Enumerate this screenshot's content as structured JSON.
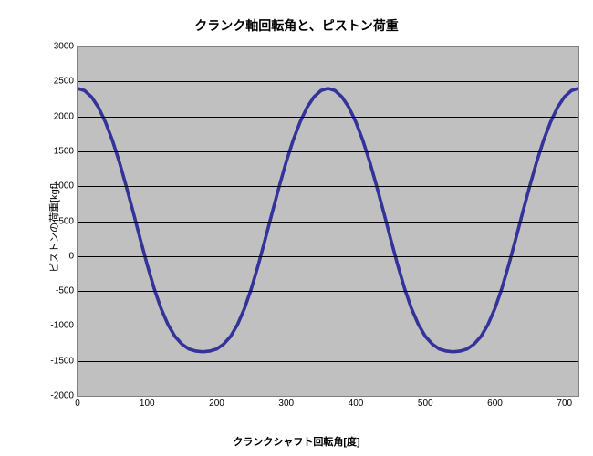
{
  "chart": {
    "type": "line",
    "title": "クランク軸回転角と、ピストン荷重",
    "xlabel": "クランクシャフト回転角[度]",
    "ylabel": "ピストンの荷重[kgf]",
    "title_fontsize": 14,
    "label_fontsize": 11,
    "tick_fontsize": 10,
    "background_color": "#ffffff",
    "plot_background_color": "#c0c0c0",
    "grid_color": "#000000",
    "border_color": "#808080",
    "line_color": "#333399",
    "line_width": 1.2,
    "xlim": [
      0,
      720
    ],
    "ylim": [
      -2000,
      3000
    ],
    "xticks": [
      0,
      100,
      200,
      300,
      400,
      500,
      600,
      700
    ],
    "yticks": [
      -2000,
      -1500,
      -1000,
      -500,
      0,
      500,
      1000,
      1500,
      2000,
      2500,
      3000
    ],
    "grid_y": true,
    "grid_x": false,
    "series": {
      "x": [
        0,
        10,
        20,
        30,
        40,
        50,
        60,
        70,
        80,
        90,
        100,
        110,
        120,
        130,
        140,
        150,
        160,
        170,
        180,
        190,
        200,
        210,
        220,
        230,
        240,
        250,
        260,
        270,
        280,
        290,
        300,
        310,
        320,
        330,
        340,
        350,
        360,
        370,
        380,
        390,
        400,
        410,
        420,
        430,
        440,
        450,
        460,
        470,
        480,
        490,
        500,
        510,
        520,
        530,
        540,
        550,
        560,
        570,
        580,
        590,
        600,
        610,
        620,
        630,
        640,
        650,
        660,
        670,
        680,
        690,
        700,
        710,
        720
      ],
      "y": [
        2400,
        2370,
        2280,
        2130,
        1920,
        1660,
        1350,
        1000,
        630,
        250,
        -120,
        -460,
        -750,
        -980,
        -1150,
        -1260,
        -1330,
        -1360,
        -1370,
        -1360,
        -1330,
        -1260,
        -1150,
        -980,
        -750,
        -460,
        -120,
        250,
        630,
        1000,
        1350,
        1660,
        1920,
        2130,
        2280,
        2370,
        2400,
        2370,
        2280,
        2130,
        1920,
        1660,
        1350,
        1000,
        630,
        250,
        -120,
        -460,
        -750,
        -980,
        -1150,
        -1260,
        -1330,
        -1360,
        -1370,
        -1360,
        -1330,
        -1260,
        -1150,
        -980,
        -750,
        -460,
        -120,
        250,
        630,
        1000,
        1350,
        1660,
        1920,
        2130,
        2280,
        2370,
        2400
      ]
    }
  }
}
